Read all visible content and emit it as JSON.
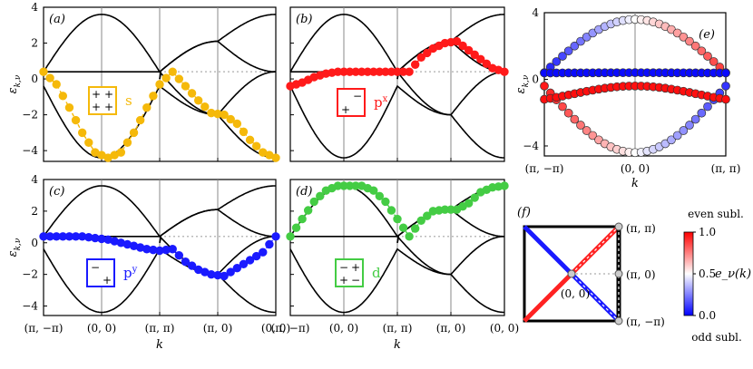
{
  "chart_data": [
    {
      "type": "line",
      "panel": "(a)",
      "orbital_label": "s",
      "orbital_color": "#f5b90a",
      "ylabel": "ε_{k,ν}",
      "ylim": [
        -4.6,
        4.0
      ],
      "yticks": [
        4,
        2,
        0,
        -2,
        -4
      ],
      "xticks": [],
      "highlight_band": "s-band: lower dispersive band along (π,−π)→(0,0)→(π,π)→(π,0)→(0,0), weight on s",
      "bands": [
        "upper: 2(|cos kx|+|cos ky|) style dispersion, max 3.6 at (0,0)",
        "flat 0.4",
        "lower: min −4.4 at (0,0)"
      ],
      "weighted_series": {
        "name": "s",
        "values_along_path": [
          0.4,
          -0.3,
          -1.6,
          -3.0,
          -4.1,
          -4.4,
          -4.1,
          -3.0,
          -1.6,
          -0.3,
          0.4,
          -0.4,
          -1.2,
          -1.9,
          -2.0,
          -2.5,
          -3.4,
          -4.1,
          -4.4
        ]
      }
    },
    {
      "type": "line",
      "panel": "(b)",
      "orbital_label": "p^x",
      "orbital_color": "#ff1a1a",
      "ylim": [
        -4.6,
        4.0
      ],
      "xticks": [],
      "weighted_series": {
        "name": "p^x",
        "values_along_path": [
          -0.4,
          -0.2,
          0.1,
          0.3,
          0.4,
          0.4,
          0.4,
          0.4,
          0.4,
          0.4,
          0.4,
          1.2,
          1.7,
          2.0,
          2.1,
          1.6,
          1.1,
          0.6,
          0.4
        ]
      }
    },
    {
      "type": "line",
      "panel": "(c)",
      "orbital_label": "p^y",
      "orbital_color": "#1a1aff",
      "ylabel": "ε_{k,ν}",
      "ylim": [
        -4.6,
        4.0
      ],
      "yticks": [
        4,
        2,
        0,
        -2,
        -4
      ],
      "weighted_series": {
        "name": "p^y",
        "values_along_path": [
          0.4,
          0.4,
          0.4,
          0.4,
          0.3,
          0.2,
          0.0,
          -0.2,
          -0.4,
          -0.5,
          -0.4,
          -1.2,
          -1.7,
          -2.0,
          -2.1,
          -1.6,
          -1.1,
          -0.6,
          0.4
        ]
      }
    },
    {
      "type": "line",
      "panel": "(d)",
      "orbital_label": "d",
      "orbital_color": "#44cc44",
      "ylim": [
        -4.6,
        4.0
      ],
      "weighted_series": {
        "name": "d",
        "values_along_path": [
          0.4,
          1.5,
          2.6,
          3.3,
          3.6,
          3.6,
          3.6,
          3.3,
          2.6,
          1.5,
          0.4,
          1.4,
          2.0,
          2.1,
          2.1,
          2.5,
          3.2,
          3.5,
          3.6
        ]
      }
    },
    {
      "type": "scatter",
      "panel": "(e)",
      "ylabel": "ε_{k,ν}",
      "xlabel": "k",
      "ylim": [
        -4.6,
        4.0
      ],
      "yticks": [
        4,
        0,
        -4
      ],
      "xticks": [
        "(π, −π)",
        "(0, 0)",
        "(π, π)"
      ],
      "colorbar": {
        "label": "e_ν(k)",
        "ticks": [
          "1.0",
          "0.5",
          "0.0"
        ],
        "top": "even subl.",
        "bottom": "odd subl."
      }
    }
  ],
  "xaxis": {
    "label": "k",
    "ticks": [
      "(π, −π)",
      "(0, 0)",
      "(π, π)",
      "(π, 0)",
      "(0, 0)"
    ]
  },
  "panel_f": {
    "label": "(f)",
    "points": [
      "(π, π)",
      "(π, 0)",
      "(0, 0)",
      "(π, −π)"
    ]
  },
  "colorbar": {
    "top_label": "even subl.",
    "bottom_label": "odd subl.",
    "top_color": "#ff0000",
    "bottom_color": "#0000ff",
    "ticks": [
      "1.0",
      "0.5",
      "0.0"
    ],
    "label": "e_ν(k)"
  },
  "text": {
    "a": "(a)",
    "b": "(b)",
    "c": "(c)",
    "d": "(d)",
    "e": "(e)",
    "f": "(f)",
    "s": "s",
    "px": "p",
    "px_sup": "x",
    "py": "p",
    "py_sup": "y",
    "dd": "d",
    "ylab": "ε",
    "ylab_sub": "k,ν",
    "k": "k",
    "origin": "(0, 0)",
    "plus": "+",
    "minus": "−"
  }
}
